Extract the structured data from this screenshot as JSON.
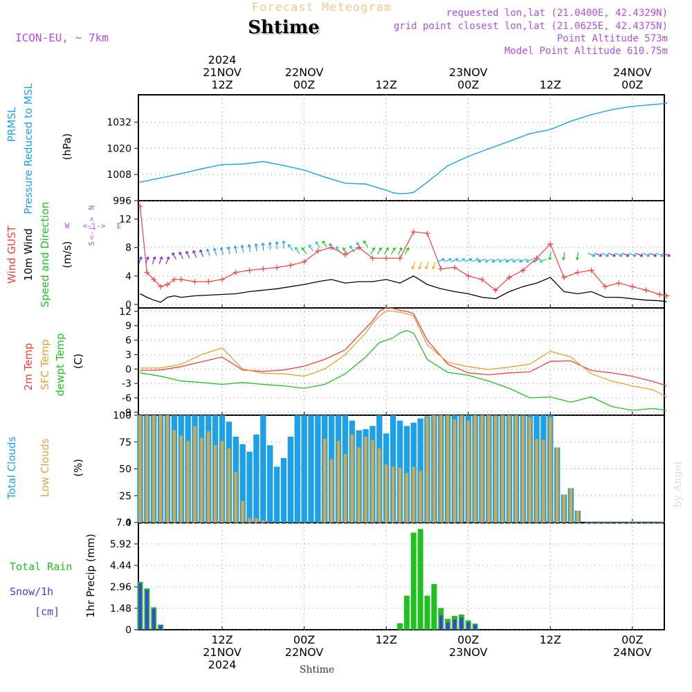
{
  "header": {
    "forecast_title": "Forecast Meteogram",
    "location": "Shtime",
    "model": "ICON-EU, ~ 7km",
    "requested": "requested lon,lat (21.0400E, 42.4329N)",
    "grid_point": "grid point closest lon,lat (21.0625E, 42.4375N)",
    "point_altitude": "Point Altitude 573m",
    "model_altitude": "Model Point Altitude 610.75m",
    "watermark": "by Angel",
    "footer_location": "Shtime"
  },
  "colors": {
    "pressure": "#1ea0e6",
    "gust": "#f04040",
    "wind": "#000000",
    "temp2m": "#f04040",
    "sfc": "#e6a030",
    "dewpt": "#20c020",
    "total_clouds": "#1ea0e6",
    "low_clouds": "#d8a848",
    "rain": "#20c020",
    "snow": "#4040e0",
    "title_orange": "#f0c890",
    "info_purple": "#b050e0"
  },
  "time_axis": {
    "top_ticks": [
      {
        "h": 12,
        "lines": [
          "2024",
          "21NOV",
          "12Z"
        ]
      },
      {
        "h": 24,
        "lines": [
          "22NOV",
          "00Z"
        ]
      },
      {
        "h": 36,
        "lines": [
          "12Z"
        ]
      },
      {
        "h": 48,
        "lines": [
          "23NOV",
          "00Z"
        ]
      },
      {
        "h": 60,
        "lines": [
          "12Z"
        ]
      },
      {
        "h": 72,
        "lines": [
          "24NOV",
          "00Z"
        ]
      }
    ],
    "bottom_ticks": [
      {
        "h": 12,
        "lines": [
          "12Z",
          "21NOV",
          "2024"
        ]
      },
      {
        "h": 24,
        "lines": [
          "00Z",
          "22NOV"
        ]
      },
      {
        "h": 36,
        "lines": [
          "12Z"
        ]
      },
      {
        "h": 48,
        "lines": [
          "00Z",
          "23NOV"
        ]
      },
      {
        "h": 60,
        "lines": [
          "12Z"
        ]
      },
      {
        "h": 72,
        "lines": [
          "00Z",
          "24NOV"
        ]
      }
    ]
  },
  "panels": {
    "pressure": {
      "label1": "PRMSL",
      "label2": "Pressure Reduced to MSL",
      "unit": "(hPa)",
      "ticks": [
        "1032",
        "1020",
        "1008",
        "996"
      ]
    },
    "wind": {
      "label_gust": "Wind GUST",
      "label_wind": "10m Wind",
      "label_dir": "Speed and Direction",
      "unit": "(m/s)",
      "ticks": [
        "12",
        "8",
        "4",
        "0"
      ],
      "compass": {
        "n": "N",
        "s": "S",
        "w": "W",
        "e": "E",
        "arrows": "<-|->"
      }
    },
    "temperature": {
      "label_t": "2m Temp",
      "label_sfc": "SFC Temp",
      "label_dew": "dewpt Temp",
      "unit": "(C)",
      "ticks": [
        "12",
        "9",
        "6",
        "3",
        "0",
        "-3",
        "-6",
        "-9"
      ]
    },
    "clouds": {
      "label_total": "Total Clouds",
      "label_low": "Low Clouds",
      "unit": "(%)",
      "ticks": [
        "100",
        "75",
        "50",
        "25",
        "0"
      ]
    },
    "precip": {
      "label_rain": "Total  Rain",
      "label_snow": "Snow/1h",
      "label_cm": "[cm]",
      "unit": "1hr Precip (mm)",
      "ticks": [
        "7.4",
        "5.92",
        "4.44",
        "2.96",
        "1.48",
        "0"
      ]
    }
  },
  "chart_data": [
    {
      "type": "line",
      "title": "PRMSL Pressure Reduced to MSL",
      "ylabel": "(hPa)",
      "ylim": [
        996,
        1044.5
      ],
      "x_unit": "hours from 21NOV 00Z",
      "x": [
        0,
        3,
        6,
        9,
        12,
        15,
        18,
        21,
        24,
        27,
        30,
        33,
        36,
        37,
        38,
        39,
        40,
        42,
        45,
        48,
        51,
        54,
        57,
        60,
        63,
        66,
        69,
        72,
        75,
        77
      ],
      "series": [
        {
          "name": "PRMSL",
          "values": [
            1004.5,
            1006.4,
            1008.4,
            1010.6,
            1012.5,
            1012.8,
            1013.9,
            1012.1,
            1010,
            1006.8,
            1004,
            1003.6,
            1000.8,
            999.6,
            999.2,
            999.3,
            999.8,
            1004.5,
            1012,
            1016.3,
            1019.8,
            1023.2,
            1026.7,
            1028.6,
            1032.4,
            1035.4,
            1037.7,
            1039.2,
            1040,
            1040.6
          ]
        }
      ]
    },
    {
      "type": "line",
      "title": "Wind GUST, 10m Wind Speed and Direction",
      "ylabel": "(m/s)",
      "ylim": [
        -0.5,
        14.6
      ],
      "x_unit": "hours from 21NOV 00Z",
      "x": [
        0,
        1,
        2,
        3,
        4,
        5,
        6,
        8,
        10,
        12,
        14,
        16,
        18,
        20,
        22,
        24,
        26,
        28,
        30,
        32,
        34,
        36,
        38,
        40,
        42,
        44,
        46,
        48,
        50,
        52,
        54,
        56,
        58,
        60,
        62,
        64,
        66,
        68,
        70,
        72,
        74,
        76,
        77
      ],
      "series": [
        {
          "name": "Wind GUST",
          "values": [
            13.8,
            4.5,
            3.5,
            2.5,
            2.8,
            3.5,
            3.5,
            3.2,
            3.2,
            3.5,
            4.5,
            4.8,
            5,
            5.2,
            5.5,
            6,
            7.5,
            8,
            7,
            8,
            6.5,
            6.5,
            6.5,
            10.2,
            10,
            5,
            5.2,
            4,
            3.5,
            2,
            3.8,
            4.8,
            6.5,
            8.5,
            3.8,
            4.5,
            4.8,
            2.5,
            3,
            2.5,
            2,
            1.4,
            1.2
          ]
        },
        {
          "name": "10m Wind",
          "values": [
            1.5,
            1,
            0.6,
            0.3,
            1,
            1.2,
            1,
            1.2,
            1.3,
            1.4,
            1.5,
            1.8,
            2,
            2.2,
            2.5,
            2.8,
            3.2,
            3.5,
            3,
            3.2,
            3.2,
            3.5,
            3,
            4,
            2.8,
            2.2,
            1.8,
            1.5,
            1,
            0.8,
            1.8,
            2.5,
            3,
            3.8,
            1.8,
            1.5,
            1.8,
            1,
            1,
            0.8,
            0.6,
            0.5,
            0.4
          ]
        }
      ]
    },
    {
      "type": "line",
      "title": "2m Temp, SFC Temp, dewpt Temp",
      "ylabel": "(C)",
      "ylim": [
        -9.6,
        12.7
      ],
      "x_unit": "hours from 21NOV 00Z",
      "x": [
        0,
        3,
        6,
        9,
        12,
        15,
        18,
        21,
        24,
        27,
        30,
        33,
        34,
        35,
        36,
        37,
        38,
        39,
        40,
        42,
        45,
        48,
        51,
        54,
        57,
        60,
        63,
        66,
        69,
        72,
        75,
        77
      ],
      "series": [
        {
          "name": "2m Temp",
          "values": [
            -0.3,
            -0.2,
            0.5,
            1.5,
            2.5,
            -0.2,
            -0.5,
            -0.2,
            0.6,
            2,
            4,
            8.5,
            10,
            12,
            12.8,
            12.6,
            12.2,
            12,
            11.5,
            6,
            1,
            -0.8,
            -1.2,
            -0.8,
            -0.6,
            1.6,
            1.7,
            -0.3,
            -0.8,
            -1.5,
            -2.6,
            -3.5
          ]
        },
        {
          "name": "SFC Temp",
          "values": [
            0.2,
            0.2,
            1,
            3,
            4.4,
            0,
            -0.9,
            -1,
            -1.5,
            0,
            3,
            7.5,
            9.5,
            11,
            12.1,
            12,
            11.8,
            11.5,
            11,
            5,
            1.4,
            0.5,
            -0.1,
            0.4,
            1,
            3.7,
            2.5,
            -1,
            -2.5,
            -3.5,
            -4.3,
            -5.8
          ]
        },
        {
          "name": "dewpt Temp",
          "values": [
            -0.8,
            -1.5,
            -2.5,
            -2.8,
            -3.2,
            -2.8,
            -3.2,
            -3.5,
            -4,
            -3.2,
            -1,
            2.5,
            4,
            5.5,
            6,
            6.5,
            7.5,
            8,
            7.5,
            2,
            -0.7,
            -1.3,
            -2.5,
            -4,
            -6,
            -5.8,
            -6.9,
            -5.8,
            -7.8,
            -8.6,
            -8.2,
            -8.6
          ]
        }
      ]
    },
    {
      "type": "bar",
      "title": "Total Clouds, Low Clouds",
      "ylabel": "(%)",
      "ylim": [
        0,
        100
      ],
      "x_unit": "hours from 21NOV 00Z",
      "x": [
        0,
        1,
        2,
        3,
        4,
        5,
        6,
        7,
        8,
        9,
        10,
        11,
        12,
        13,
        14,
        15,
        16,
        17,
        18,
        19,
        20,
        21,
        22,
        23,
        24,
        25,
        26,
        27,
        28,
        29,
        30,
        31,
        32,
        33,
        34,
        35,
        36,
        37,
        38,
        39,
        40,
        41,
        42,
        43,
        44,
        45,
        46,
        47,
        48,
        49,
        50,
        51,
        52,
        53,
        54,
        55,
        56,
        57,
        58,
        59,
        60,
        61,
        62,
        63,
        64,
        65,
        66,
        67,
        68,
        69,
        70,
        71,
        72,
        73,
        74,
        75,
        76,
        77
      ],
      "series": [
        {
          "name": "Total Clouds",
          "values": [
            100,
            100,
            100,
            100,
            100,
            100,
            100,
            100,
            100,
            100,
            100,
            100,
            100,
            94,
            80,
            73,
            66,
            82,
            100,
            72,
            52,
            60,
            80,
            100,
            100,
            100,
            100,
            100,
            100,
            100,
            100,
            95,
            86,
            87,
            90,
            100,
            83,
            100,
            95,
            90,
            93,
            97,
            99,
            100,
            100,
            100,
            100,
            100,
            100,
            100,
            100,
            100,
            100,
            100,
            100,
            100,
            100,
            100,
            100,
            100,
            100,
            70,
            26,
            32,
            11,
            0,
            0,
            0,
            0,
            0,
            0,
            0,
            0,
            0,
            0,
            0,
            0,
            0
          ]
        },
        {
          "name": "Low Clouds",
          "values": [
            100,
            100,
            100,
            100,
            100,
            86,
            81,
            76,
            90,
            79,
            85,
            72,
            76,
            69,
            47,
            20,
            4,
            4,
            2,
            0,
            0,
            0,
            0,
            0,
            0,
            0,
            0,
            78,
            59,
            76,
            64,
            82,
            70,
            80,
            77,
            69,
            54,
            52,
            51,
            46,
            52,
            48,
            98,
            100,
            100,
            100,
            96,
            100,
            95,
            100,
            100,
            100,
            99,
            100,
            100,
            100,
            99,
            98,
            78,
            77,
            98,
            70,
            26,
            32,
            11,
            0,
            0,
            0,
            0,
            0,
            0,
            0,
            0,
            0,
            0,
            0,
            0,
            0
          ]
        }
      ]
    },
    {
      "type": "bar",
      "title": "1hr Precip",
      "ylabel": "1hr Precip (mm)",
      "ylim": [
        0,
        7.4
      ],
      "x_unit": "hours from 21NOV 00Z",
      "x": [
        0,
        1,
        2,
        3,
        4,
        5,
        6,
        7,
        8,
        9,
        10,
        11,
        12,
        13,
        14,
        15,
        16,
        17,
        18,
        19,
        20,
        21,
        22,
        23,
        24,
        25,
        26,
        27,
        28,
        29,
        30,
        31,
        32,
        33,
        34,
        35,
        36,
        37,
        38,
        39,
        40,
        41,
        42,
        43,
        44,
        45,
        46,
        47,
        48,
        49,
        50,
        51,
        52,
        53,
        54,
        55,
        56,
        57,
        58,
        59,
        60,
        61,
        62,
        63,
        64,
        65,
        66,
        67,
        68,
        69,
        70,
        71,
        72,
        73,
        74,
        75,
        76,
        77
      ],
      "series": [
        {
          "name": "Total Rain",
          "values": [
            3.3,
            2.85,
            1.55,
            0.35,
            0,
            0,
            0,
            0,
            0,
            0,
            0,
            0,
            0,
            0,
            0,
            0,
            0,
            0,
            0,
            0,
            0,
            0,
            0,
            0,
            0,
            0,
            0,
            0,
            0,
            0,
            0,
            0,
            0,
            0,
            0,
            0,
            0,
            0,
            0.45,
            2.35,
            6.7,
            6.95,
            2.35,
            3.15,
            1.5,
            0.75,
            0.95,
            1.05,
            0.65,
            0.42,
            0,
            0,
            0,
            0,
            0,
            0,
            0,
            0,
            0,
            0,
            0,
            0,
            0,
            0,
            0,
            0,
            0,
            0,
            0,
            0,
            0,
            0,
            0,
            0,
            0,
            0,
            0,
            0
          ]
        },
        {
          "name": "Snow/1h",
          "values": [
            3.2,
            2.75,
            1.45,
            0.3,
            0,
            0,
            0,
            0,
            0,
            0,
            0,
            0,
            0,
            0,
            0,
            0,
            0,
            0,
            0,
            0,
            0,
            0,
            0,
            0,
            0,
            0,
            0,
            0,
            0,
            0,
            0,
            0,
            0,
            0,
            0,
            0,
            0,
            0,
            0,
            0,
            0,
            0,
            0,
            0,
            1.0,
            0.5,
            0.7,
            0.85,
            0.5,
            0.35,
            0,
            0,
            0,
            0,
            0,
            0,
            0,
            0,
            0,
            0,
            0,
            0,
            0,
            0,
            0,
            0,
            0,
            0,
            0,
            0,
            0,
            0,
            0,
            0,
            0,
            0,
            0,
            0
          ]
        }
      ]
    }
  ]
}
